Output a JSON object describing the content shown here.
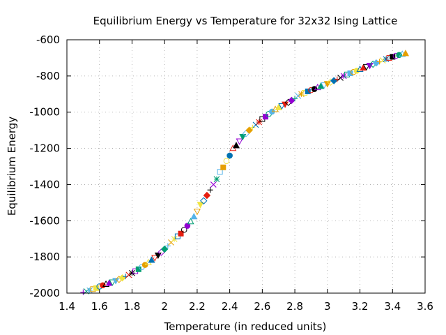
{
  "chart_data": {
    "type": "scatter",
    "title": "Equilibrium Energy vs Temperature for 32x32 Ising Lattice",
    "xlabel": "Temperature (in reduced units)",
    "ylabel": "Equilibrium Energy",
    "xlim": [
      1.4,
      3.6
    ],
    "ylim": [
      -2000,
      -600
    ],
    "xticks": [
      "1.4",
      "1.6",
      "1.8",
      "2",
      "2.2",
      "2.4",
      "2.6",
      "2.8",
      "3",
      "3.2",
      "3.4",
      "3.6"
    ],
    "yticks": [
      "-2000",
      "-1800",
      "-1600",
      "-1400",
      "-1200",
      "-1000",
      "-800",
      "-600"
    ],
    "grid": true,
    "legend": "none",
    "colors": [
      "#9400d3",
      "#009e73",
      "#56b4e9",
      "#e69f00",
      "#f0e442",
      "#0072b2",
      "#e51e10",
      "#000000"
    ],
    "markers": [
      "plus",
      "cross",
      "star",
      "square",
      "square-filled",
      "circle",
      "circle-filled",
      "triangle",
      "triangle-filled",
      "triangle-down",
      "triangle-down-filled",
      "diamond",
      "diamond-filled"
    ],
    "points": [
      [
        1.5,
        -1995
      ],
      [
        1.52,
        -1990
      ],
      [
        1.54,
        -1985
      ],
      [
        1.56,
        -1978
      ],
      [
        1.58,
        -1972
      ],
      [
        1.6,
        -1963
      ],
      [
        1.62,
        -1957
      ],
      [
        1.64,
        -1951
      ],
      [
        1.66,
        -1945
      ],
      [
        1.68,
        -1939
      ],
      [
        1.7,
        -1931
      ],
      [
        1.72,
        -1924
      ],
      [
        1.74,
        -1916
      ],
      [
        1.76,
        -1908
      ],
      [
        1.78,
        -1899
      ],
      [
        1.8,
        -1889
      ],
      [
        1.82,
        -1879
      ],
      [
        1.84,
        -1868
      ],
      [
        1.86,
        -1856
      ],
      [
        1.88,
        -1844
      ],
      [
        1.9,
        -1831
      ],
      [
        1.92,
        -1818
      ],
      [
        1.94,
        -1804
      ],
      [
        1.96,
        -1790
      ],
      [
        1.98,
        -1774
      ],
      [
        2.0,
        -1757
      ],
      [
        2.02,
        -1739
      ],
      [
        2.04,
        -1720
      ],
      [
        2.06,
        -1701
      ],
      [
        2.08,
        -1686
      ],
      [
        2.1,
        -1671
      ],
      [
        2.12,
        -1650
      ],
      [
        2.14,
        -1628
      ],
      [
        2.16,
        -1605
      ],
      [
        2.18,
        -1578
      ],
      [
        2.2,
        -1548
      ],
      [
        2.22,
        -1510
      ],
      [
        2.24,
        -1490
      ],
      [
        2.26,
        -1460
      ],
      [
        2.28,
        -1430
      ],
      [
        2.3,
        -1400
      ],
      [
        2.32,
        -1370
      ],
      [
        2.34,
        -1330
      ],
      [
        2.36,
        -1305
      ],
      [
        2.38,
        -1270
      ],
      [
        2.4,
        -1240
      ],
      [
        2.42,
        -1200
      ],
      [
        2.44,
        -1185
      ],
      [
        2.46,
        -1160
      ],
      [
        2.48,
        -1135
      ],
      [
        2.5,
        -1118
      ],
      [
        2.52,
        -1100
      ],
      [
        2.54,
        -1085
      ],
      [
        2.56,
        -1070
      ],
      [
        2.58,
        -1055
      ],
      [
        2.6,
        -1038
      ],
      [
        2.62,
        -1025
      ],
      [
        2.64,
        -1010
      ],
      [
        2.66,
        -997
      ],
      [
        2.68,
        -985
      ],
      [
        2.7,
        -975
      ],
      [
        2.72,
        -965
      ],
      [
        2.74,
        -956
      ],
      [
        2.76,
        -946
      ],
      [
        2.78,
        -935
      ],
      [
        2.8,
        -925
      ],
      [
        2.82,
        -910
      ],
      [
        2.84,
        -900
      ],
      [
        2.86,
        -893
      ],
      [
        2.88,
        -885
      ],
      [
        2.9,
        -878
      ],
      [
        2.92,
        -872
      ],
      [
        2.94,
        -864
      ],
      [
        2.96,
        -857
      ],
      [
        2.98,
        -850
      ],
      [
        3.0,
        -843
      ],
      [
        3.02,
        -834
      ],
      [
        3.04,
        -826
      ],
      [
        3.06,
        -818
      ],
      [
        3.08,
        -810
      ],
      [
        3.1,
        -800
      ],
      [
        3.12,
        -792
      ],
      [
        3.14,
        -785
      ],
      [
        3.16,
        -778
      ],
      [
        3.18,
        -771
      ],
      [
        3.2,
        -763
      ],
      [
        3.22,
        -756
      ],
      [
        3.24,
        -749
      ],
      [
        3.26,
        -742
      ],
      [
        3.28,
        -735
      ],
      [
        3.3,
        -728
      ],
      [
        3.32,
        -721
      ],
      [
        3.34,
        -714
      ],
      [
        3.36,
        -707
      ],
      [
        3.38,
        -700
      ],
      [
        3.4,
        -694
      ],
      [
        3.42,
        -689
      ],
      [
        3.44,
        -684
      ],
      [
        3.46,
        -680
      ],
      [
        3.48,
        -676
      ]
    ]
  }
}
